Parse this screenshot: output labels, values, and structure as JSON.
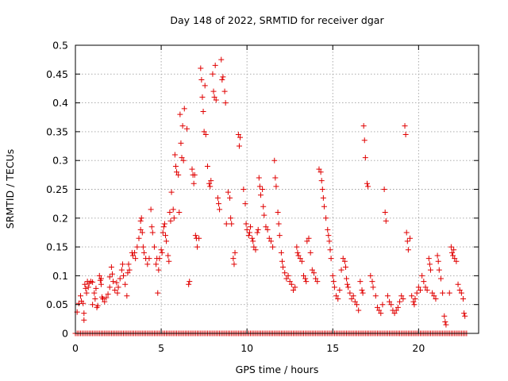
{
  "chart_data": {
    "type": "scatter",
    "title": "Day 148 of 2022, SRMTID for receiver dgar",
    "xlabel": "GPS time / hours",
    "ylabel": "SRMTID / TECUs",
    "xlim": [
      0,
      23.5
    ],
    "ylim": [
      0,
      0.5
    ],
    "xticks": [
      0,
      5,
      10,
      15,
      20
    ],
    "xtick_labels": [
      "0",
      "5",
      "10",
      "15",
      "20"
    ],
    "yticks": [
      0,
      0.05,
      0.1,
      0.15,
      0.2,
      0.25,
      0.3,
      0.35,
      0.4,
      0.45,
      0.5
    ],
    "ytick_labels": [
      "0",
      "0.05",
      "0.1",
      "0.15",
      "0.2",
      "0.25",
      "0.3",
      "0.35",
      "0.4",
      "0.45",
      "0.5"
    ],
    "grid": true,
    "marker": "plus",
    "color": "#e00000",
    "baseline": {
      "value": 0,
      "x_start": 0,
      "x_end": 22.8,
      "step": 0.1
    },
    "series": [
      {
        "name": "SRMTID",
        "points": [
          [
            0.1,
            0.037
          ],
          [
            0.2,
            0.052
          ],
          [
            0.3,
            0.065
          ],
          [
            0.35,
            0.056
          ],
          [
            0.45,
            0.052
          ],
          [
            0.5,
            0.035
          ],
          [
            0.5,
            0.023
          ],
          [
            0.55,
            0.085
          ],
          [
            0.6,
            0.078
          ],
          [
            0.65,
            0.07
          ],
          [
            0.7,
            0.09
          ],
          [
            0.75,
            0.08
          ],
          [
            0.8,
            0.087
          ],
          [
            0.9,
            0.09
          ],
          [
            1.0,
            0.089
          ],
          [
            1.0,
            0.05
          ],
          [
            1.1,
            0.07
          ],
          [
            1.15,
            0.06
          ],
          [
            1.2,
            0.078
          ],
          [
            1.25,
            0.045
          ],
          [
            1.3,
            0.048
          ],
          [
            1.4,
            0.1
          ],
          [
            1.45,
            0.092
          ],
          [
            1.5,
            0.095
          ],
          [
            1.5,
            0.085
          ],
          [
            1.55,
            0.063
          ],
          [
            1.6,
            0.06
          ],
          [
            1.7,
            0.055
          ],
          [
            1.8,
            0.062
          ],
          [
            1.9,
            0.068
          ],
          [
            2.0,
            0.08
          ],
          [
            2.0,
            0.098
          ],
          [
            2.1,
            0.115
          ],
          [
            2.15,
            0.103
          ],
          [
            2.2,
            0.09
          ],
          [
            2.3,
            0.075
          ],
          [
            2.4,
            0.088
          ],
          [
            2.45,
            0.07
          ],
          [
            2.5,
            0.08
          ],
          [
            2.6,
            0.095
          ],
          [
            2.7,
            0.11
          ],
          [
            2.75,
            0.12
          ],
          [
            2.8,
            0.1
          ],
          [
            2.9,
            0.085
          ],
          [
            3.0,
            0.065
          ],
          [
            3.05,
            0.105
          ],
          [
            3.1,
            0.12
          ],
          [
            3.15,
            0.11
          ],
          [
            3.3,
            0.14
          ],
          [
            3.35,
            0.135
          ],
          [
            3.45,
            0.14
          ],
          [
            3.5,
            0.13
          ],
          [
            3.6,
            0.15
          ],
          [
            3.7,
            0.165
          ],
          [
            3.8,
            0.195
          ],
          [
            3.8,
            0.18
          ],
          [
            3.85,
            0.2
          ],
          [
            3.9,
            0.175
          ],
          [
            3.95,
            0.15
          ],
          [
            4.0,
            0.14
          ],
          [
            4.1,
            0.13
          ],
          [
            4.2,
            0.12
          ],
          [
            4.3,
            0.13
          ],
          [
            4.4,
            0.215
          ],
          [
            4.45,
            0.185
          ],
          [
            4.5,
            0.175
          ],
          [
            4.6,
            0.15
          ],
          [
            4.7,
            0.12
          ],
          [
            4.75,
            0.13
          ],
          [
            4.8,
            0.07
          ],
          [
            4.85,
            0.11
          ],
          [
            4.9,
            0.13
          ],
          [
            5.0,
            0.145
          ],
          [
            5.05,
            0.14
          ],
          [
            5.1,
            0.175
          ],
          [
            5.15,
            0.185
          ],
          [
            5.2,
            0.19
          ],
          [
            5.25,
            0.17
          ],
          [
            5.3,
            0.16
          ],
          [
            5.4,
            0.135
          ],
          [
            5.45,
            0.125
          ],
          [
            5.5,
            0.21
          ],
          [
            5.55,
            0.195
          ],
          [
            5.6,
            0.245
          ],
          [
            5.7,
            0.215
          ],
          [
            5.75,
            0.2
          ],
          [
            5.8,
            0.31
          ],
          [
            5.85,
            0.29
          ],
          [
            5.9,
            0.28
          ],
          [
            6.0,
            0.275
          ],
          [
            6.05,
            0.21
          ],
          [
            6.1,
            0.38
          ],
          [
            6.15,
            0.33
          ],
          [
            6.2,
            0.305
          ],
          [
            6.25,
            0.36
          ],
          [
            6.3,
            0.3
          ],
          [
            6.35,
            0.39
          ],
          [
            6.5,
            0.355
          ],
          [
            6.6,
            0.085
          ],
          [
            6.65,
            0.09
          ],
          [
            6.8,
            0.285
          ],
          [
            6.85,
            0.275
          ],
          [
            6.9,
            0.26
          ],
          [
            6.95,
            0.275
          ],
          [
            7.0,
            0.17
          ],
          [
            7.05,
            0.165
          ],
          [
            7.1,
            0.15
          ],
          [
            7.2,
            0.165
          ],
          [
            7.3,
            0.46
          ],
          [
            7.35,
            0.44
          ],
          [
            7.4,
            0.41
          ],
          [
            7.45,
            0.385
          ],
          [
            7.5,
            0.35
          ],
          [
            7.55,
            0.43
          ],
          [
            7.6,
            0.345
          ],
          [
            7.7,
            0.29
          ],
          [
            7.8,
            0.26
          ],
          [
            7.85,
            0.255
          ],
          [
            7.9,
            0.265
          ],
          [
            8.0,
            0.45
          ],
          [
            8.05,
            0.42
          ],
          [
            8.1,
            0.41
          ],
          [
            8.15,
            0.465
          ],
          [
            8.2,
            0.405
          ],
          [
            8.3,
            0.235
          ],
          [
            8.35,
            0.225
          ],
          [
            8.4,
            0.215
          ],
          [
            8.5,
            0.475
          ],
          [
            8.55,
            0.44
          ],
          [
            8.6,
            0.445
          ],
          [
            8.7,
            0.42
          ],
          [
            8.75,
            0.4
          ],
          [
            8.8,
            0.19
          ],
          [
            8.9,
            0.245
          ],
          [
            9.0,
            0.235
          ],
          [
            9.05,
            0.2
          ],
          [
            9.1,
            0.19
          ],
          [
            9.2,
            0.13
          ],
          [
            9.25,
            0.12
          ],
          [
            9.3,
            0.14
          ],
          [
            9.5,
            0.345
          ],
          [
            9.55,
            0.325
          ],
          [
            9.6,
            0.34
          ],
          [
            9.8,
            0.25
          ],
          [
            9.9,
            0.225
          ],
          [
            9.95,
            0.19
          ],
          [
            10.0,
            0.18
          ],
          [
            10.1,
            0.17
          ],
          [
            10.15,
            0.175
          ],
          [
            10.2,
            0.185
          ],
          [
            10.3,
            0.165
          ],
          [
            10.35,
            0.16
          ],
          [
            10.4,
            0.15
          ],
          [
            10.5,
            0.145
          ],
          [
            10.6,
            0.175
          ],
          [
            10.65,
            0.18
          ],
          [
            10.7,
            0.27
          ],
          [
            10.75,
            0.255
          ],
          [
            10.8,
            0.24
          ],
          [
            10.9,
            0.25
          ],
          [
            10.95,
            0.22
          ],
          [
            11.0,
            0.205
          ],
          [
            11.1,
            0.185
          ],
          [
            11.2,
            0.18
          ],
          [
            11.3,
            0.165
          ],
          [
            11.4,
            0.16
          ],
          [
            11.5,
            0.15
          ],
          [
            11.6,
            0.3
          ],
          [
            11.65,
            0.27
          ],
          [
            11.7,
            0.255
          ],
          [
            11.8,
            0.21
          ],
          [
            11.85,
            0.19
          ],
          [
            11.9,
            0.17
          ],
          [
            12.0,
            0.14
          ],
          [
            12.05,
            0.125
          ],
          [
            12.1,
            0.115
          ],
          [
            12.2,
            0.105
          ],
          [
            12.3,
            0.095
          ],
          [
            12.4,
            0.1
          ],
          [
            12.5,
            0.09
          ],
          [
            12.6,
            0.085
          ],
          [
            12.7,
            0.075
          ],
          [
            12.8,
            0.08
          ],
          [
            12.9,
            0.15
          ],
          [
            12.95,
            0.14
          ],
          [
            13.0,
            0.135
          ],
          [
            13.1,
            0.13
          ],
          [
            13.2,
            0.125
          ],
          [
            13.3,
            0.1
          ],
          [
            13.4,
            0.095
          ],
          [
            13.45,
            0.09
          ],
          [
            13.5,
            0.16
          ],
          [
            13.6,
            0.165
          ],
          [
            13.7,
            0.14
          ],
          [
            13.8,
            0.11
          ],
          [
            13.9,
            0.105
          ],
          [
            14.0,
            0.095
          ],
          [
            14.1,
            0.09
          ],
          [
            14.2,
            0.285
          ],
          [
            14.3,
            0.28
          ],
          [
            14.35,
            0.265
          ],
          [
            14.4,
            0.25
          ],
          [
            14.45,
            0.235
          ],
          [
            14.5,
            0.22
          ],
          [
            14.6,
            0.2
          ],
          [
            14.7,
            0.18
          ],
          [
            14.75,
            0.17
          ],
          [
            14.8,
            0.16
          ],
          [
            14.85,
            0.145
          ],
          [
            14.9,
            0.13
          ],
          [
            15.0,
            0.1
          ],
          [
            15.05,
            0.09
          ],
          [
            15.1,
            0.08
          ],
          [
            15.2,
            0.065
          ],
          [
            15.3,
            0.06
          ],
          [
            15.4,
            0.075
          ],
          [
            15.5,
            0.11
          ],
          [
            15.6,
            0.13
          ],
          [
            15.7,
            0.125
          ],
          [
            15.75,
            0.115
          ],
          [
            15.8,
            0.095
          ],
          [
            15.85,
            0.085
          ],
          [
            15.9,
            0.08
          ],
          [
            16.0,
            0.07
          ],
          [
            16.1,
            0.06
          ],
          [
            16.2,
            0.065
          ],
          [
            16.3,
            0.055
          ],
          [
            16.4,
            0.05
          ],
          [
            16.5,
            0.04
          ],
          [
            16.6,
            0.09
          ],
          [
            16.7,
            0.075
          ],
          [
            16.75,
            0.07
          ],
          [
            16.8,
            0.36
          ],
          [
            16.85,
            0.335
          ],
          [
            16.9,
            0.305
          ],
          [
            17.0,
            0.26
          ],
          [
            17.05,
            0.255
          ],
          [
            17.2,
            0.1
          ],
          [
            17.3,
            0.09
          ],
          [
            17.35,
            0.08
          ],
          [
            17.5,
            0.065
          ],
          [
            17.6,
            0.045
          ],
          [
            17.7,
            0.04
          ],
          [
            17.8,
            0.035
          ],
          [
            17.9,
            0.05
          ],
          [
            18.0,
            0.25
          ],
          [
            18.05,
            0.21
          ],
          [
            18.1,
            0.195
          ],
          [
            18.2,
            0.065
          ],
          [
            18.3,
            0.055
          ],
          [
            18.4,
            0.05
          ],
          [
            18.5,
            0.04
          ],
          [
            18.6,
            0.035
          ],
          [
            18.7,
            0.04
          ],
          [
            18.8,
            0.045
          ],
          [
            18.9,
            0.055
          ],
          [
            19.0,
            0.065
          ],
          [
            19.1,
            0.06
          ],
          [
            19.2,
            0.36
          ],
          [
            19.25,
            0.345
          ],
          [
            19.3,
            0.175
          ],
          [
            19.35,
            0.16
          ],
          [
            19.4,
            0.145
          ],
          [
            19.5,
            0.165
          ],
          [
            19.6,
            0.065
          ],
          [
            19.7,
            0.055
          ],
          [
            19.75,
            0.05
          ],
          [
            19.8,
            0.06
          ],
          [
            19.9,
            0.07
          ],
          [
            20.0,
            0.08
          ],
          [
            20.1,
            0.075
          ],
          [
            20.2,
            0.1
          ],
          [
            20.3,
            0.09
          ],
          [
            20.4,
            0.08
          ],
          [
            20.5,
            0.075
          ],
          [
            20.6,
            0.13
          ],
          [
            20.65,
            0.12
          ],
          [
            20.7,
            0.11
          ],
          [
            20.8,
            0.07
          ],
          [
            20.9,
            0.065
          ],
          [
            21.0,
            0.06
          ],
          [
            21.1,
            0.135
          ],
          [
            21.15,
            0.125
          ],
          [
            21.2,
            0.11
          ],
          [
            21.3,
            0.095
          ],
          [
            21.4,
            0.07
          ],
          [
            21.5,
            0.03
          ],
          [
            21.55,
            0.02
          ],
          [
            21.6,
            0.015
          ],
          [
            21.8,
            0.07
          ],
          [
            21.9,
            0.15
          ],
          [
            21.95,
            0.14
          ],
          [
            22.0,
            0.135
          ],
          [
            22.05,
            0.145
          ],
          [
            22.1,
            0.13
          ],
          [
            22.2,
            0.125
          ],
          [
            22.3,
            0.085
          ],
          [
            22.4,
            0.075
          ],
          [
            22.5,
            0.07
          ],
          [
            22.6,
            0.06
          ],
          [
            22.65,
            0.035
          ],
          [
            22.7,
            0.03
          ]
        ]
      }
    ]
  }
}
